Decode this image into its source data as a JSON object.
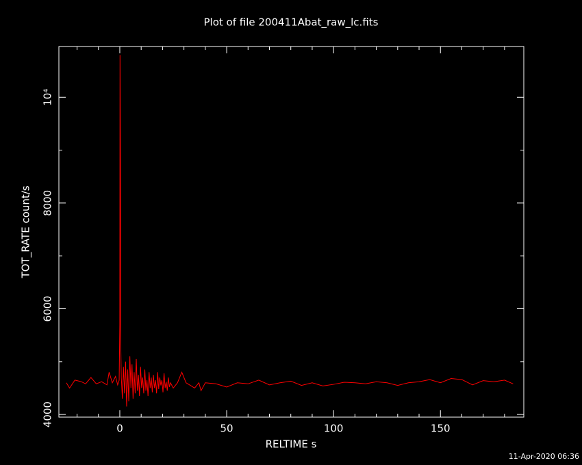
{
  "chart_data": {
    "type": "line",
    "title": "Plot of file 200411Abat_raw_lc.fits",
    "xlabel": "RELTIME  s",
    "ylabel": "TOT_RATE  count/s",
    "footer": "11-Apr-2020 06:36",
    "xlim": [
      -28.5,
      189
    ],
    "ylim": [
      3950,
      10960
    ],
    "xticks": [
      0,
      50,
      100,
      150
    ],
    "xminorticks": [
      -20,
      -10,
      10,
      20,
      30,
      40,
      60,
      70,
      80,
      90,
      110,
      120,
      130,
      140,
      160,
      170,
      180
    ],
    "yticks": [
      4000,
      6000,
      8000,
      {
        "value": 10000,
        "label": "10⁴"
      }
    ],
    "yminorticks": [
      5000,
      7000,
      9000
    ],
    "x": [
      -25,
      -23.5,
      -21,
      -18,
      -16,
      -13.5,
      -11,
      -8.5,
      -6,
      -5,
      -3.5,
      -2,
      -1,
      -0.3,
      0,
      0.1,
      0.3,
      0.5,
      0.7,
      1.2,
      1.7,
      2.2,
      2.7,
      3.2,
      3.7,
      4.2,
      4.7,
      5.2,
      5.7,
      6.2,
      6.7,
      7.2,
      7.7,
      8.2,
      8.7,
      9.2,
      9.7,
      10.2,
      10.7,
      11.2,
      11.7,
      12.2,
      12.7,
      13.2,
      13.7,
      14.2,
      14.7,
      15.2,
      15.7,
      16.2,
      16.7,
      17.2,
      17.7,
      18.2,
      18.7,
      19.2,
      19.7,
      20.2,
      20.7,
      21.2,
      21.7,
      22.2,
      22.7,
      23.2,
      23.7,
      25,
      27,
      29,
      31,
      33,
      35,
      37,
      38,
      40,
      45,
      50,
      55,
      60,
      65,
      70,
      75,
      80,
      85,
      90,
      95,
      100,
      105,
      110,
      115,
      120,
      125,
      130,
      135,
      140,
      145,
      150,
      155,
      160,
      165,
      170,
      175,
      180,
      184
    ],
    "series": [
      {
        "color": "#ff0000",
        "values": [
          4600,
          4500,
          4650,
          4620,
          4580,
          4700,
          4580,
          4620,
          4560,
          4800,
          4600,
          4720,
          4560,
          4650,
          5700,
          10800,
          8800,
          5200,
          4700,
          4300,
          4900,
          4400,
          5000,
          4150,
          4850,
          4250,
          5100,
          4500,
          4950,
          4300,
          4800,
          4400,
          5050,
          4450,
          4750,
          4350,
          4900,
          4500,
          4700,
          4400,
          4850,
          4450,
          4650,
          4350,
          4800,
          4500,
          4700,
          4420,
          4750,
          4500,
          4650,
          4400,
          4800,
          4480,
          4700,
          4550,
          4650,
          4420,
          4780,
          4500,
          4620,
          4450,
          4700,
          4520,
          4600,
          4500,
          4600,
          4800,
          4600,
          4550,
          4500,
          4600,
          4450,
          4600,
          4580,
          4520,
          4600,
          4580,
          4650,
          4560,
          4600,
          4630,
          4550,
          4600,
          4540,
          4570,
          4610,
          4600,
          4580,
          4620,
          4600,
          4550,
          4600,
          4620,
          4660,
          4600,
          4680,
          4660,
          4560,
          4640,
          4620,
          4650,
          4580
        ]
      }
    ]
  }
}
